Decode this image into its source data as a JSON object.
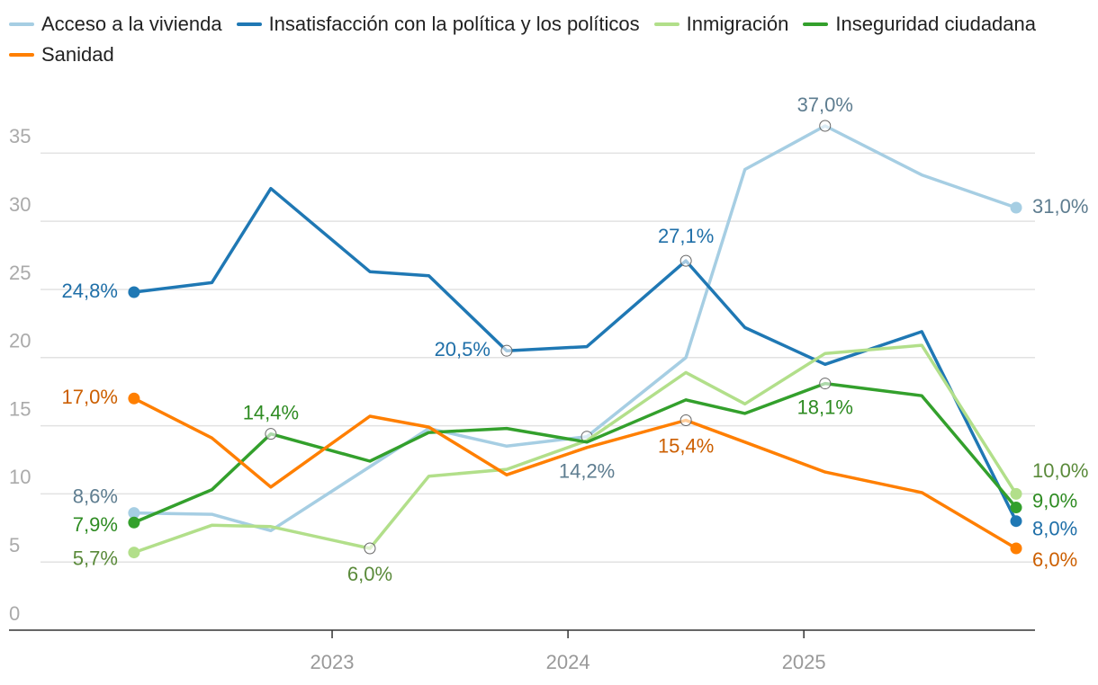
{
  "chart_data": {
    "type": "line",
    "x": [
      2022.16,
      2022.49,
      2022.74,
      2023.16,
      2023.41,
      2023.74,
      2024.08,
      2024.5,
      2024.75,
      2025.09,
      2025.5,
      2025.9
    ],
    "xlim": [
      2021.63,
      2025.98
    ],
    "xticks": [
      2023,
      2024,
      2025
    ],
    "ylim": [
      0,
      37
    ],
    "yticks": [
      0,
      5,
      10,
      15,
      20,
      25,
      30,
      35
    ],
    "grid": true,
    "series": [
      {
        "name": "Acceso a la vivienda",
        "color": "#a6cee3",
        "label_color": "#5e7d90",
        "values": [
          8.6,
          8.5,
          7.3,
          12.0,
          14.8,
          13.5,
          14.2,
          20.0,
          33.8,
          37.0,
          33.4,
          31.0
        ],
        "value_labels": [
          "8,6%",
          null,
          null,
          null,
          null,
          null,
          "14,2%",
          null,
          null,
          "37,0%",
          null,
          "31,0%"
        ]
      },
      {
        "name": "Insatisfacción con la política y los políticos",
        "color": "#1f78b4",
        "label_color": "#1f6fa8",
        "values": [
          24.8,
          25.5,
          32.4,
          26.3,
          26.0,
          20.5,
          20.8,
          27.1,
          22.2,
          19.5,
          21.9,
          8.0
        ],
        "value_labels": [
          "24,8%",
          null,
          null,
          null,
          null,
          "20,5%",
          null,
          "27,1%",
          null,
          null,
          null,
          "8,0%"
        ]
      },
      {
        "name": "Inmigración",
        "color": "#b2df8a",
        "label_color": "#5a8a3a",
        "values": [
          5.7,
          7.7,
          7.6,
          6.0,
          11.3,
          11.8,
          13.9,
          18.9,
          16.6,
          20.3,
          20.9,
          10.0
        ],
        "value_labels": [
          "5,7%",
          null,
          null,
          "6,0%",
          null,
          null,
          null,
          null,
          null,
          null,
          null,
          "10,0%"
        ]
      },
      {
        "name": "Inseguridad ciudadana",
        "color": "#33a02c",
        "label_color": "#2e8b22",
        "values": [
          7.9,
          10.3,
          14.4,
          12.4,
          14.5,
          14.8,
          13.8,
          16.9,
          15.9,
          18.1,
          17.2,
          9.0
        ],
        "value_labels": [
          "7,9%",
          null,
          "14,4%",
          null,
          null,
          null,
          null,
          null,
          null,
          "18,1%",
          null,
          "9,0%"
        ]
      },
      {
        "name": "Sanidad",
        "color": "#ff7f00",
        "label_color": "#cc5f00",
        "values": [
          17.0,
          14.1,
          10.5,
          15.7,
          14.9,
          11.4,
          13.4,
          15.4,
          13.8,
          11.6,
          10.1,
          6.0
        ],
        "value_labels": [
          "17,0%",
          null,
          null,
          null,
          null,
          null,
          null,
          "15,4%",
          null,
          null,
          null,
          "6,0%"
        ]
      }
    ]
  }
}
